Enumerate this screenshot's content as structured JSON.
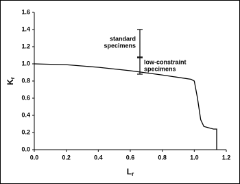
{
  "chart_data": {
    "type": "line",
    "x_label": {
      "text": "L",
      "subscript": "r"
    },
    "y_label": {
      "text": "K",
      "subscript": "r"
    },
    "series": [
      {
        "color": "#000000",
        "x": [
          0.0,
          0.2,
          0.4,
          0.6,
          0.8,
          0.98,
          1.0,
          1.02,
          1.04,
          1.06,
          1.12,
          1.14,
          1.14
        ],
        "values": [
          1.0,
          0.99,
          0.96,
          0.92,
          0.87,
          0.82,
          0.8,
          0.6,
          0.35,
          0.27,
          0.24,
          0.24,
          0.0
        ]
      }
    ],
    "error_bars": [
      {
        "x": 0.66,
        "low": 1.08,
        "high": 1.4,
        "label": [
          "standard",
          "specimens"
        ]
      },
      {
        "x": 0.66,
        "low": 0.88,
        "high": 1.07,
        "label": [
          "low-constraint",
          "specimens"
        ]
      }
    ],
    "xlim": [
      0.0,
      1.2
    ],
    "ylim": [
      0.0,
      1.6
    ],
    "xticks": [
      {
        "value": 0.0,
        "label": "0.0"
      },
      {
        "value": 0.2,
        "label": "0.2"
      },
      {
        "value": 0.4,
        "label": "0.4"
      },
      {
        "value": 0.6,
        "label": "0.6"
      },
      {
        "value": 0.8,
        "label": "0.8"
      },
      {
        "value": 1.0,
        "label": "1.0"
      },
      {
        "value": 1.2,
        "label": "1.2"
      }
    ],
    "yticks": [
      {
        "value": 0.0,
        "label": "0.0"
      },
      {
        "value": 0.2,
        "label": "0.2"
      },
      {
        "value": 0.4,
        "label": "0.4"
      },
      {
        "value": 0.6,
        "label": "0.6"
      },
      {
        "value": 0.8,
        "label": "0.8"
      },
      {
        "value": 1.0,
        "label": "1.0"
      },
      {
        "value": 1.2,
        "label": "1.2"
      },
      {
        "value": 1.4,
        "label": "1.4"
      },
      {
        "value": 1.6,
        "label": "1.6"
      }
    ]
  }
}
